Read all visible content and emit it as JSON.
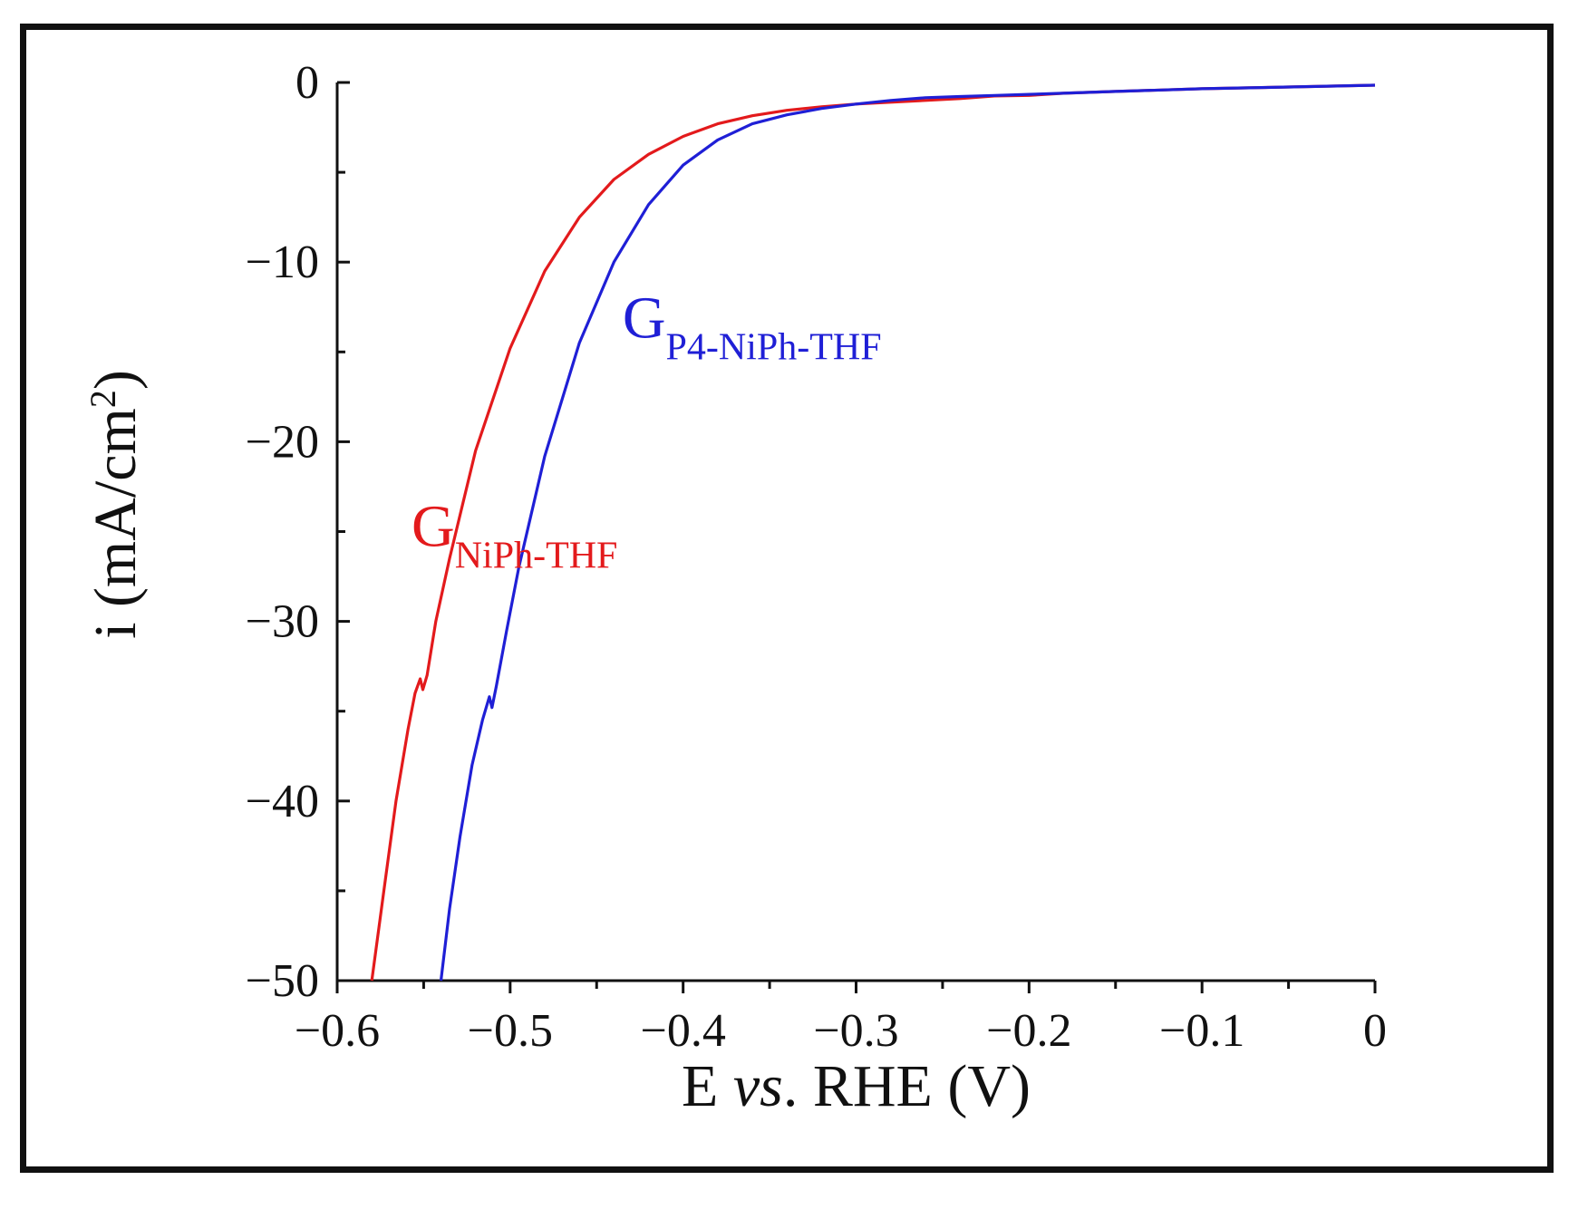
{
  "chart_data": {
    "type": "line",
    "title": "",
    "xlabel": {
      "main": "E ",
      "italic": "vs",
      "rest": ". RHE (V)"
    },
    "ylabel": {
      "main": "i (mA/cm",
      "sup": "2",
      "close": ")"
    },
    "xlim": [
      -0.6,
      0
    ],
    "ylim": [
      -50,
      0
    ],
    "x_major_ticks": [
      -0.6,
      -0.5,
      -0.4,
      -0.3,
      -0.2,
      -0.1,
      0
    ],
    "x_tick_labels": [
      "−0.6",
      "−0.5",
      "−0.4",
      "−0.3",
      "−0.2",
      "−0.1",
      "0"
    ],
    "y_major_ticks": [
      0,
      -10,
      -20,
      -30,
      -40,
      -50
    ],
    "y_tick_labels": [
      "0",
      "−10",
      "−20",
      "−30",
      "−40",
      "−50"
    ],
    "grid": false,
    "series": [
      {
        "name": "G_NiPh-THF",
        "label_main": "G",
        "label_sub": "NiPh-THF",
        "color": "#e31a1c",
        "points": [
          [
            -0.58,
            -50
          ],
          [
            -0.573,
            -45
          ],
          [
            -0.566,
            -40
          ],
          [
            -0.559,
            -36
          ],
          [
            -0.555,
            -34
          ],
          [
            -0.552,
            -33.2
          ],
          [
            -0.5505,
            -33.8
          ],
          [
            -0.548,
            -33
          ],
          [
            -0.543,
            -30
          ],
          [
            -0.535,
            -26.5
          ],
          [
            -0.52,
            -20.5
          ],
          [
            -0.5,
            -14.8
          ],
          [
            -0.48,
            -10.5
          ],
          [
            -0.46,
            -7.5
          ],
          [
            -0.44,
            -5.4
          ],
          [
            -0.42,
            -4.0
          ],
          [
            -0.4,
            -3.0
          ],
          [
            -0.38,
            -2.3
          ],
          [
            -0.36,
            -1.85
          ],
          [
            -0.34,
            -1.55
          ],
          [
            -0.32,
            -1.35
          ],
          [
            -0.3,
            -1.2
          ],
          [
            -0.28,
            -1.1
          ],
          [
            -0.26,
            -1.0
          ],
          [
            -0.24,
            -0.9
          ],
          [
            -0.22,
            -0.75
          ],
          [
            -0.2,
            -0.72
          ],
          [
            -0.18,
            -0.6
          ],
          [
            -0.15,
            -0.5
          ],
          [
            -0.1,
            -0.35
          ],
          [
            -0.05,
            -0.25
          ],
          [
            0,
            -0.15
          ]
        ]
      },
      {
        "name": "G_P4-NiPh-THF",
        "label_main": "G",
        "label_sub": "P4-NiPh-THF",
        "color": "#1f1fd6",
        "points": [
          [
            -0.54,
            -50
          ],
          [
            -0.535,
            -46
          ],
          [
            -0.529,
            -42
          ],
          [
            -0.522,
            -38
          ],
          [
            -0.516,
            -35.5
          ],
          [
            -0.512,
            -34.2
          ],
          [
            -0.5105,
            -34.8
          ],
          [
            -0.508,
            -33.6
          ],
          [
            -0.502,
            -30.5
          ],
          [
            -0.495,
            -27
          ],
          [
            -0.48,
            -20.8
          ],
          [
            -0.46,
            -14.5
          ],
          [
            -0.44,
            -10
          ],
          [
            -0.42,
            -6.8
          ],
          [
            -0.4,
            -4.6
          ],
          [
            -0.38,
            -3.2
          ],
          [
            -0.36,
            -2.3
          ],
          [
            -0.34,
            -1.8
          ],
          [
            -0.32,
            -1.45
          ],
          [
            -0.3,
            -1.2
          ],
          [
            -0.28,
            -1.0
          ],
          [
            -0.26,
            -0.85
          ],
          [
            -0.24,
            -0.78
          ],
          [
            -0.22,
            -0.72
          ],
          [
            -0.2,
            -0.66
          ],
          [
            -0.15,
            -0.5
          ],
          [
            -0.1,
            -0.35
          ],
          [
            -0.05,
            -0.25
          ],
          [
            0,
            -0.15
          ]
        ]
      }
    ],
    "annotations": [
      {
        "series": "G_P4-NiPh-THF",
        "text_main": "G",
        "text_sub": "P4-NiPh-THF",
        "at": [
          -0.435,
          -14.2
        ]
      },
      {
        "series": "G_NiPh-THF",
        "text_main": "G",
        "text_sub": "NiPh-THF",
        "at": [
          -0.557,
          -25.8
        ]
      }
    ]
  }
}
